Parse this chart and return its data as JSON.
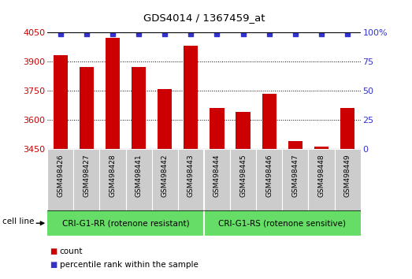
{
  "title": "GDS4014 / 1367459_at",
  "samples": [
    "GSM498426",
    "GSM498427",
    "GSM498428",
    "GSM498441",
    "GSM498442",
    "GSM498443",
    "GSM498444",
    "GSM498445",
    "GSM498446",
    "GSM498447",
    "GSM498448",
    "GSM498449"
  ],
  "counts": [
    3930,
    3870,
    4020,
    3870,
    3760,
    3980,
    3660,
    3640,
    3735,
    3490,
    3465,
    3660
  ],
  "bar_color": "#cc0000",
  "percentile_color": "#3333cc",
  "ymin": 3450,
  "ymax": 4050,
  "yticks": [
    3450,
    3600,
    3750,
    3900,
    4050
  ],
  "right_yticks": [
    0,
    25,
    50,
    75,
    100
  ],
  "right_yticklabels": [
    "0",
    "25",
    "50",
    "75",
    "100%"
  ],
  "group1_label": "CRI-G1-RR (rotenone resistant)",
  "group2_label": "CRI-G1-RS (rotenone sensitive)",
  "group1_count": 6,
  "group2_count": 6,
  "cell_line_label": "cell line",
  "legend_count_label": "count",
  "legend_percentile_label": "percentile rank within the sample",
  "group_bg_color": "#66dd66",
  "tick_bg_color": "#cccccc",
  "bar_width": 0.55,
  "fig_width": 5.23,
  "fig_height": 3.54,
  "dpi": 100
}
